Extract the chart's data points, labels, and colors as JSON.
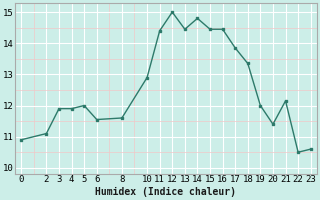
{
  "x": [
    0,
    2,
    3,
    4,
    5,
    6,
    8,
    10,
    11,
    12,
    13,
    14,
    15,
    16,
    17,
    18,
    19,
    20,
    21,
    22,
    23
  ],
  "y": [
    10.9,
    11.1,
    11.9,
    11.9,
    12.0,
    11.55,
    11.6,
    12.9,
    14.4,
    15.0,
    14.45,
    14.8,
    14.45,
    14.45,
    13.85,
    13.35,
    12.0,
    11.4,
    12.15,
    10.5,
    10.6
  ],
  "line_color": "#2d7a6a",
  "bg_color": "#cceee8",
  "grid_major_color": "#ffffff",
  "grid_minor_color": "#f0c8c8",
  "xlabel": "Humidex (Indice chaleur)",
  "ylim": [
    9.8,
    15.3
  ],
  "xlim": [
    -0.5,
    23.5
  ],
  "xticks": [
    0,
    2,
    3,
    4,
    5,
    6,
    8,
    10,
    11,
    12,
    13,
    14,
    15,
    16,
    17,
    18,
    19,
    20,
    21,
    22,
    23
  ],
  "yticks": [
    10,
    11,
    12,
    13,
    14,
    15
  ],
  "label_fontsize": 7,
  "tick_fontsize": 6.5,
  "spine_color": "#aaaaaa"
}
